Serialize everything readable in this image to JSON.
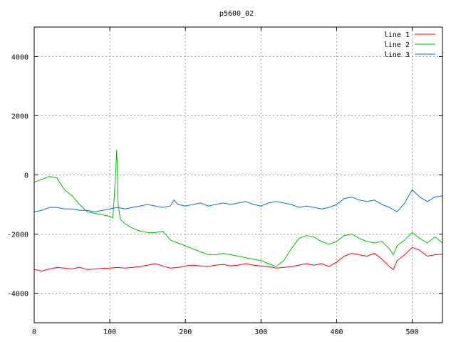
{
  "chart_data": {
    "type": "line",
    "title": "p5600_02",
    "xlabel": "",
    "ylabel": "",
    "xlim": [
      0,
      540
    ],
    "ylim": [
      -5000,
      5000
    ],
    "x_ticks": [
      0,
      100,
      200,
      300,
      400,
      500
    ],
    "y_ticks": [
      -4000,
      -2000,
      0,
      2000,
      4000
    ],
    "grid": true,
    "legend_position": "top-right",
    "series": [
      {
        "name": "line 1",
        "color": "#ff0000",
        "x": [
          0,
          10,
          20,
          30,
          40,
          50,
          60,
          70,
          80,
          90,
          100,
          110,
          120,
          130,
          140,
          150,
          160,
          170,
          180,
          190,
          200,
          210,
          220,
          230,
          240,
          250,
          260,
          270,
          280,
          290,
          300,
          310,
          320,
          330,
          340,
          350,
          360,
          370,
          380,
          390,
          400,
          410,
          420,
          430,
          440,
          450,
          460,
          470,
          475,
          480,
          490,
          500,
          510,
          520,
          530,
          540
        ],
        "y": [
          -3200,
          -3250,
          -3180,
          -3130,
          -3150,
          -3180,
          -3120,
          -3200,
          -3180,
          -3160,
          -3150,
          -3130,
          -3150,
          -3130,
          -3100,
          -3050,
          -3000,
          -3080,
          -3150,
          -3130,
          -3080,
          -3050,
          -3080,
          -3100,
          -3050,
          -3030,
          -3080,
          -3050,
          -3000,
          -3050,
          -3080,
          -3100,
          -3150,
          -3130,
          -3100,
          -3050,
          -3000,
          -3050,
          -3000,
          -3100,
          -2950,
          -2750,
          -2650,
          -2700,
          -2750,
          -2650,
          -2850,
          -3100,
          -3200,
          -2900,
          -2700,
          -2450,
          -2550,
          -2750,
          -2700,
          -2680
        ]
      },
      {
        "name": "line 2",
        "color": "#00c000",
        "x": [
          0,
          10,
          20,
          30,
          40,
          50,
          60,
          70,
          80,
          90,
          100,
          104,
          106,
          108,
          109,
          110,
          111,
          114,
          120,
          130,
          140,
          150,
          160,
          170,
          180,
          190,
          200,
          210,
          220,
          230,
          240,
          250,
          260,
          270,
          280,
          290,
          300,
          310,
          320,
          330,
          340,
          350,
          360,
          370,
          380,
          390,
          400,
          410,
          420,
          430,
          440,
          450,
          460,
          470,
          475,
          480,
          490,
          500,
          510,
          520,
          530,
          540
        ],
        "y": [
          -250,
          -150,
          -50,
          -100,
          -500,
          -700,
          -1000,
          -1250,
          -1300,
          -1350,
          -1400,
          -1450,
          -700,
          200,
          850,
          300,
          -1000,
          -1500,
          -1650,
          -1800,
          -1900,
          -1950,
          -1950,
          -1900,
          -2200,
          -2300,
          -2400,
          -2500,
          -2600,
          -2700,
          -2700,
          -2650,
          -2700,
          -2750,
          -2800,
          -2850,
          -2900,
          -3000,
          -3100,
          -2900,
          -2500,
          -2150,
          -2050,
          -2100,
          -2250,
          -2350,
          -2250,
          -2050,
          -2000,
          -2150,
          -2250,
          -2300,
          -2250,
          -2500,
          -2700,
          -2400,
          -2200,
          -1950,
          -2150,
          -2300,
          -2100,
          -2300
        ]
      },
      {
        "name": "line 3",
        "color": "#0070e0",
        "x": [
          0,
          10,
          20,
          30,
          40,
          50,
          60,
          70,
          80,
          90,
          100,
          110,
          120,
          130,
          140,
          150,
          160,
          170,
          180,
          185,
          190,
          200,
          210,
          220,
          230,
          240,
          250,
          260,
          270,
          280,
          290,
          300,
          310,
          320,
          330,
          340,
          350,
          360,
          370,
          380,
          390,
          400,
          410,
          420,
          430,
          440,
          450,
          460,
          470,
          480,
          490,
          500,
          510,
          520,
          530,
          540
        ],
        "y": [
          -1250,
          -1200,
          -1100,
          -1100,
          -1150,
          -1150,
          -1200,
          -1200,
          -1250,
          -1200,
          -1150,
          -1100,
          -1150,
          -1100,
          -1050,
          -1000,
          -1050,
          -1100,
          -1050,
          -850,
          -1000,
          -1050,
          -1000,
          -950,
          -1050,
          -1000,
          -950,
          -1000,
          -950,
          -900,
          -1000,
          -1050,
          -950,
          -900,
          -950,
          -1000,
          -1100,
          -1050,
          -1100,
          -1150,
          -1100,
          -1000,
          -800,
          -750,
          -850,
          -900,
          -850,
          -1000,
          -1100,
          -1250,
          -950,
          -500,
          -750,
          -900,
          -750,
          -700
        ]
      }
    ]
  }
}
